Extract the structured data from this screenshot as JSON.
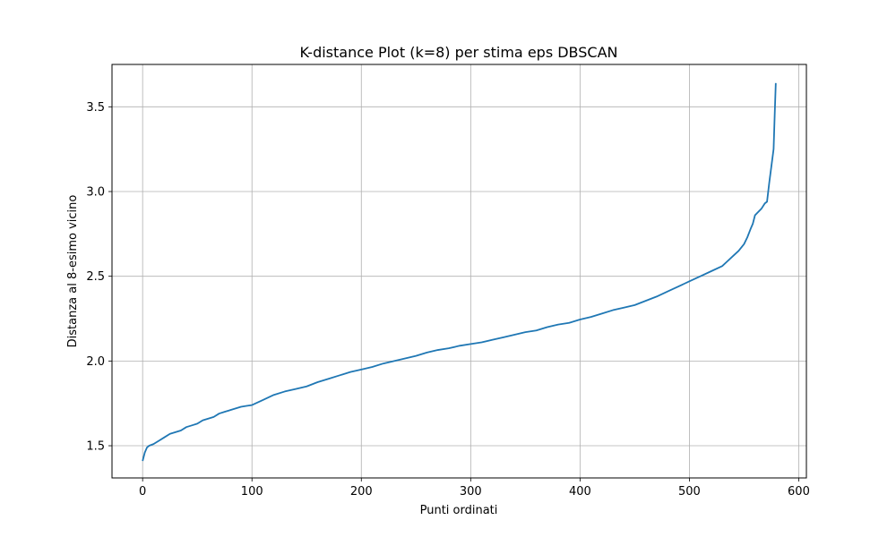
{
  "chart_data": {
    "type": "line",
    "title": "K-distance Plot (k=8) per stima eps DBSCAN",
    "xlabel": "Punti ordinati",
    "ylabel": "Distanza al 8-esimo vicino",
    "xlim": [
      -28,
      607
    ],
    "ylim": [
      1.31,
      3.75
    ],
    "xticks": [
      0,
      100,
      200,
      300,
      400,
      500,
      600
    ],
    "yticks": [
      1.5,
      2.0,
      2.5,
      3.0,
      3.5
    ],
    "xtick_labels": [
      "0",
      "100",
      "200",
      "300",
      "400",
      "500",
      "600"
    ],
    "ytick_labels": [
      "1.5",
      "2.0",
      "2.5",
      "3.0",
      "3.5"
    ],
    "grid": true,
    "series": [
      {
        "color": "#1f77b4",
        "x": [
          0,
          2,
          4,
          6,
          10,
          15,
          20,
          25,
          30,
          35,
          40,
          45,
          50,
          55,
          60,
          65,
          70,
          75,
          80,
          85,
          90,
          95,
          100,
          110,
          120,
          130,
          140,
          150,
          160,
          170,
          180,
          190,
          200,
          210,
          220,
          230,
          240,
          250,
          260,
          270,
          280,
          290,
          300,
          310,
          320,
          330,
          340,
          350,
          360,
          370,
          380,
          390,
          400,
          410,
          420,
          430,
          440,
          450,
          460,
          470,
          480,
          490,
          500,
          510,
          520,
          530,
          535,
          540,
          545,
          550,
          553,
          556,
          558,
          560,
          563,
          566,
          569,
          571,
          573,
          575,
          577,
          578,
          579
        ],
        "y": [
          1.41,
          1.46,
          1.49,
          1.5,
          1.51,
          1.53,
          1.55,
          1.57,
          1.58,
          1.59,
          1.61,
          1.62,
          1.63,
          1.65,
          1.66,
          1.67,
          1.69,
          1.7,
          1.71,
          1.72,
          1.73,
          1.735,
          1.74,
          1.77,
          1.8,
          1.82,
          1.835,
          1.85,
          1.875,
          1.895,
          1.915,
          1.935,
          1.95,
          1.965,
          1.985,
          2.0,
          2.015,
          2.03,
          2.05,
          2.065,
          2.075,
          2.09,
          2.1,
          2.11,
          2.125,
          2.14,
          2.155,
          2.17,
          2.18,
          2.2,
          2.215,
          2.225,
          2.245,
          2.26,
          2.28,
          2.3,
          2.315,
          2.33,
          2.355,
          2.38,
          2.41,
          2.44,
          2.47,
          2.5,
          2.53,
          2.56,
          2.59,
          2.62,
          2.65,
          2.69,
          2.73,
          2.78,
          2.81,
          2.86,
          2.88,
          2.9,
          2.93,
          2.94,
          3.05,
          3.15,
          3.25,
          3.45,
          3.64
        ]
      }
    ]
  }
}
